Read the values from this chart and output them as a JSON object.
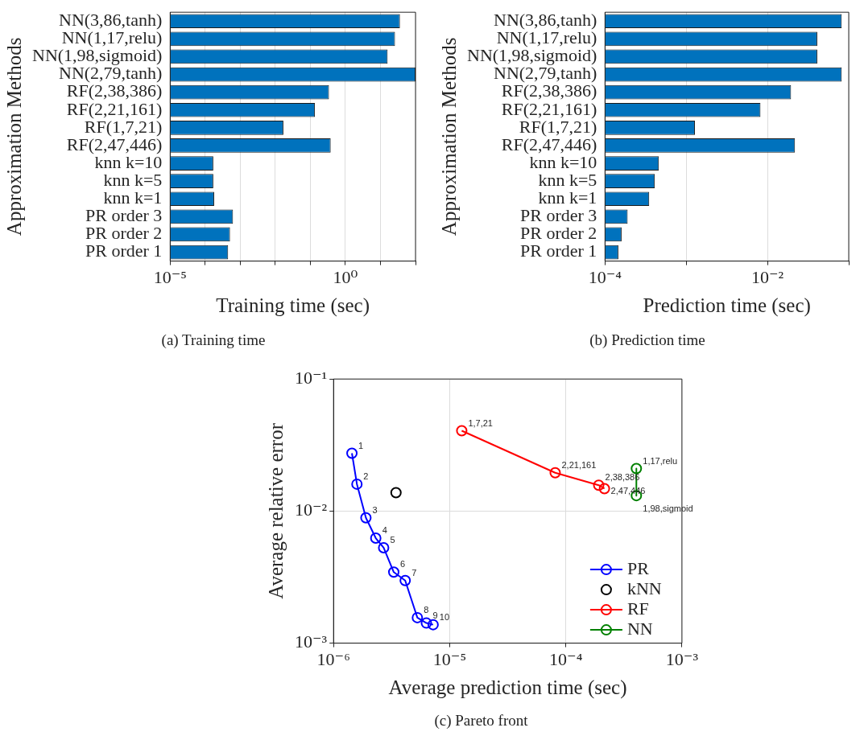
{
  "chart_data": [
    {
      "type": "bar",
      "orientation": "horizontal",
      "log": "x",
      "xlabel": "Training time (sec)",
      "ylabel": "Approximation Methods",
      "categories": [
        "NN(3,86,tanh)",
        "NN(1,17,relu)",
        "NN(1,98,sigmoid)",
        "NN(2,79,tanh)",
        "RF(2,38,386)",
        "RF(2,21,161)",
        "RF(1,7,21)",
        "RF(2,47,446)",
        "knn k=10",
        "knn k=5",
        "knn k=1",
        "PR order 3",
        "PR order 2",
        "PR order 1"
      ],
      "values": [
        36,
        26,
        16,
        100,
        0.34,
        0.135,
        0.017,
        0.38,
        0.00017,
        0.00017,
        0.00018,
        0.00062,
        0.00051,
        0.00045
      ],
      "color": "#0072bd",
      "xlim": [
        1e-05,
        100
      ],
      "xticks": [
        {
          "value": 1e-05,
          "label": "10⁻⁵"
        },
        {
          "value": 0.0001,
          "label": null
        },
        {
          "value": 0.001,
          "label": null
        },
        {
          "value": 0.01,
          "label": null
        },
        {
          "value": 0.1,
          "label": null
        },
        {
          "value": 1,
          "label": "10⁰"
        },
        {
          "value": 10,
          "label": null
        },
        {
          "value": 100,
          "label": null
        }
      ],
      "grid": "x",
      "annotations": [
        "(a) Training time"
      ]
    },
    {
      "type": "bar",
      "orientation": "horizontal",
      "log": "x",
      "xlabel": "Prediction time (sec)",
      "ylabel": "Approximation Methods",
      "categories": [
        "NN(3,86,tanh)",
        "NN(1,17,relu)",
        "NN(1,98,sigmoid)",
        "NN(2,79,tanh)",
        "RF(2,38,386)",
        "RF(2,21,161)",
        "RF(1,7,21)",
        "RF(2,47,446)",
        "knn k=10",
        "knn k=5",
        "knn k=1",
        "PR order 3",
        "PR order 2",
        "PR order 1"
      ],
      "values": [
        0.082,
        0.041,
        0.041,
        0.082,
        0.0195,
        0.0082,
        0.00128,
        0.0218,
        0.00046,
        0.00041,
        0.00035,
        0.00019,
        0.00016,
        0.000146
      ],
      "color": "#0072bd",
      "xlim": [
        0.0001,
        0.1
      ],
      "xticks": [
        {
          "value": 0.0001,
          "label": "10⁻⁴"
        },
        {
          "value": 0.001,
          "label": null
        },
        {
          "value": 0.01,
          "label": "10⁻²"
        },
        {
          "value": 0.1,
          "label": null
        }
      ],
      "grid": "x",
      "annotations": [
        "(b) Prediction time"
      ]
    },
    {
      "type": "line",
      "log": "xy",
      "xlabel": "Average prediction time (sec)",
      "ylabel": "Average relative error",
      "marker": "circle",
      "legend": "bottom right",
      "grid": true,
      "xlim": [
        1e-06,
        0.001
      ],
      "ylim": [
        0.001,
        0.1
      ],
      "xticks": [
        {
          "value": 1e-06,
          "label": "10⁻⁶"
        },
        {
          "value": 1e-05,
          "label": "10⁻⁵"
        },
        {
          "value": 0.0001,
          "label": "10⁻⁴"
        },
        {
          "value": 0.001,
          "label": "10⁻³"
        }
      ],
      "yticks": [
        {
          "value": 0.001,
          "label": "10⁻³"
        },
        {
          "value": 0.01,
          "label": "10⁻²"
        },
        {
          "value": 0.1,
          "label": "10⁻¹"
        }
      ],
      "series": [
        {
          "name": "PR",
          "color": "#0000ff",
          "x": [
            1.44e-06,
            1.59e-06,
            1.9e-06,
            2.31e-06,
            2.7e-06,
            3.3e-06,
            4.14e-06,
            5.27e-06,
            6.3e-06,
            7.2e-06
          ],
          "values": [
            0.0274,
            0.016,
            0.0089,
            0.00624,
            0.00528,
            0.00345,
            0.00298,
            0.00156,
            0.00142,
            0.00138
          ]
        },
        {
          "name": "kNN",
          "type": "scatter",
          "color": "#000000",
          "x": [
            3.45e-06
          ],
          "values": [
            0.0138
          ]
        },
        {
          "name": "RF",
          "color": "#ff0000",
          "x": [
            1.27e-05,
            8.1e-05,
            0.000192,
            0.000215
          ],
          "values": [
            0.0406,
            0.0195,
            0.0157,
            0.0148
          ]
        },
        {
          "name": "NN",
          "color": "#008000",
          "x": [
            0.000405,
            0.000405
          ],
          "values": [
            0.021,
            0.0131
          ]
        }
      ],
      "annotations": [
        {
          "text": "1",
          "x": 1.44e-06,
          "y": 0.0274
        },
        {
          "text": "2",
          "x": 1.59e-06,
          "y": 0.016
        },
        {
          "text": "3",
          "x": 1.9e-06,
          "y": 0.0089
        },
        {
          "text": "4",
          "x": 2.31e-06,
          "y": 0.00624
        },
        {
          "text": "5",
          "x": 2.7e-06,
          "y": 0.00528
        },
        {
          "text": "6",
          "x": 3.3e-06,
          "y": 0.00345
        },
        {
          "text": "7",
          "x": 4.14e-06,
          "y": 0.00298
        },
        {
          "text": "8",
          "x": 5.27e-06,
          "y": 0.00156
        },
        {
          "text": "9",
          "x": 6.3e-06,
          "y": 0.00142
        },
        {
          "text": "10",
          "x": 7.2e-06,
          "y": 0.00138
        },
        {
          "text": "1,7,21",
          "x": 1.27e-05,
          "y": 0.0406
        },
        {
          "text": "2,21,161",
          "x": 8.1e-05,
          "y": 0.0195
        },
        {
          "text": "2,38,386",
          "x": 0.000192,
          "y": 0.0157
        },
        {
          "text": "2,47,446",
          "x": 0.000215,
          "y": 0.0148
        },
        {
          "text": "1,17,relu",
          "x": 0.000405,
          "y": 0.021
        },
        {
          "text": "1,98,sigmoid",
          "x": 0.000405,
          "y": 0.0131
        },
        "(c) Pareto front"
      ]
    }
  ]
}
